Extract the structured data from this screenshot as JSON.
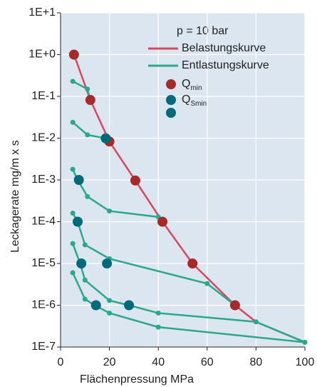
{
  "chart_data": {
    "type": "line",
    "ylog": true,
    "grid": true,
    "xlabel": "Flächenpressung  MPa",
    "ylabel": "Leckagerate  mg/m x s",
    "xlim": [
      0,
      100
    ],
    "xticks": [
      0,
      20,
      40,
      60,
      80,
      100
    ],
    "ylim": [
      1e-07,
      10
    ],
    "yticks": [
      {
        "value": 10,
        "label": "1E+1"
      },
      {
        "value": 1,
        "label": "1E+0"
      },
      {
        "value": 0.1,
        "label": "1E-1"
      },
      {
        "value": 0.01,
        "label": "1E-2"
      },
      {
        "value": 0.001,
        "label": "1E-3"
      },
      {
        "value": 0.0001,
        "label": "1E-4"
      },
      {
        "value": 1e-05,
        "label": "1E-5"
      },
      {
        "value": 1e-06,
        "label": "1E-6"
      },
      {
        "value": 1e-07,
        "label": "1E-7"
      }
    ],
    "legend_title": "p = 10 bar",
    "series": [
      {
        "name": "Belastungskurve",
        "color": "#d9485f",
        "style": "line",
        "x": [
          5.5,
          12.2,
          20,
          30.6,
          41.7,
          54,
          71.4,
          80,
          100
        ],
        "y": [
          1,
          0.082,
          0.0083,
          0.00097,
          0.0001,
          1e-05,
          1e-06,
          4e-07,
          1.3e-07
        ]
      },
      {
        "name": "Entlastungskurve",
        "color": "#2aa88a",
        "style": "line",
        "x": [
          5,
          11,
          12.2,
          null,
          5,
          11,
          18.5,
          20,
          null,
          5,
          7,
          11,
          20,
          40,
          41.7,
          null,
          5,
          7,
          10,
          20,
          60,
          71.4,
          null,
          5,
          8,
          10,
          20,
          28,
          40,
          80,
          100,
          null,
          5,
          10,
          14,
          20,
          40,
          100
        ],
        "y": [
          0.23,
          0.15,
          0.082,
          null,
          0.024,
          0.012,
          0.0099,
          0.0083,
          null,
          0.0018,
          0.001,
          0.0004,
          0.00018,
          0.00013,
          0.0001,
          null,
          0.00016,
          0.0001,
          2.8e-05,
          1.3e-05,
          3.3e-06,
          1e-06,
          null,
          3e-05,
          1e-05,
          4e-06,
          1.3e-06,
          1e-06,
          6.5e-07,
          4e-07,
          1.3e-07,
          null,
          6e-06,
          1.4e-06,
          1e-06,
          6.5e-07,
          3e-07,
          1.3e-07
        ]
      },
      {
        "name": "Q",
        "subscript": "min",
        "color": "#a52a2a",
        "style": "points",
        "x": [
          5.5,
          12.2,
          20,
          30.6,
          41.7,
          54,
          71.4
        ],
        "y": [
          1,
          0.082,
          0.0083,
          0.00097,
          0.0001,
          1e-05,
          1e-06
        ]
      },
      {
        "name": "Q",
        "subscript": "Smin",
        "color": "#00697a",
        "style": "points",
        "x": [
          18.5,
          7.5,
          7,
          19,
          8.5,
          28,
          14.5
        ],
        "y": [
          0.0099,
          0.001,
          0.0001,
          1e-05,
          1e-05,
          1e-06,
          1e-06
        ]
      }
    ]
  }
}
